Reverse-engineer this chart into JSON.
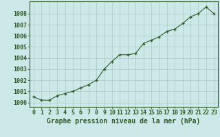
{
  "x": [
    0,
    1,
    2,
    3,
    4,
    5,
    6,
    7,
    8,
    9,
    10,
    11,
    12,
    13,
    14,
    15,
    16,
    17,
    18,
    19,
    20,
    21,
    22,
    23
  ],
  "y": [
    1000.5,
    1000.2,
    1000.2,
    1000.6,
    1000.8,
    1001.0,
    1001.3,
    1001.6,
    1002.0,
    1003.0,
    1003.7,
    1004.3,
    1004.3,
    1004.4,
    1005.3,
    1005.6,
    1005.9,
    1006.4,
    1006.6,
    1007.1,
    1007.7,
    1008.0,
    1008.6,
    1008.0
  ],
  "line_color": "#2d5a27",
  "marker_color": "#2d5a27",
  "bg_color": "#cce8e8",
  "grid_color": "#aac8c8",
  "xlabel": "Graphe pression niveau de la mer (hPa)",
  "ylim": [
    999.6,
    1009.1
  ],
  "xlim": [
    -0.5,
    23.5
  ],
  "yticks": [
    1000,
    1001,
    1002,
    1003,
    1004,
    1005,
    1006,
    1007,
    1008
  ],
  "xticks": [
    0,
    1,
    2,
    3,
    4,
    5,
    6,
    7,
    8,
    9,
    10,
    11,
    12,
    13,
    14,
    15,
    16,
    17,
    18,
    19,
    20,
    21,
    22,
    23
  ],
  "xlabel_fontsize": 7.0,
  "tick_fontsize": 6.0,
  "label_color": "#2d5a27"
}
